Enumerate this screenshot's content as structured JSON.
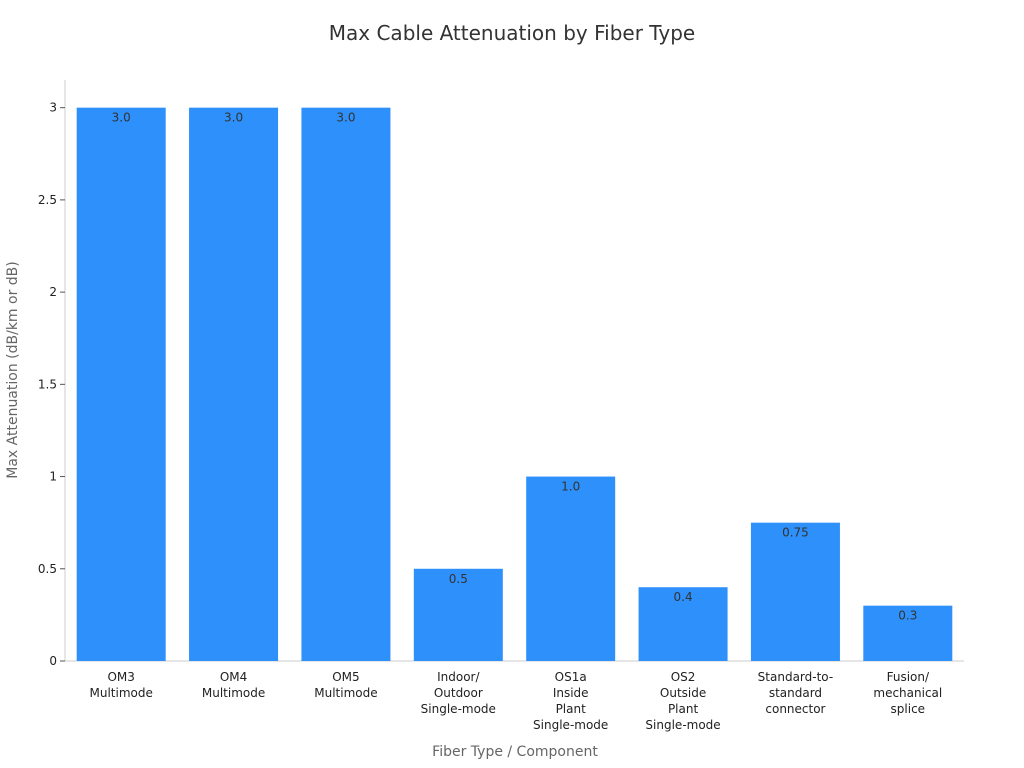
{
  "chart_data": {
    "type": "bar",
    "title": "Max Cable Attenuation by Fiber Type",
    "xlabel": "Fiber Type / Component",
    "ylabel": "Max Attenuation (dB/km or dB)",
    "categories": [
      [
        "OM3",
        "Multimode"
      ],
      [
        "OM4",
        "Multimode"
      ],
      [
        "OM5",
        "Multimode"
      ],
      [
        "Indoor/",
        "Outdoor",
        "Single-mode"
      ],
      [
        "OS1a",
        "Inside",
        "Plant",
        "Single-mode"
      ],
      [
        "OS2",
        "Outside",
        "Plant",
        "Single-mode"
      ],
      [
        "Standard-to-",
        "standard",
        "connector"
      ],
      [
        "Fusion/",
        "mechanical",
        "splice"
      ]
    ],
    "values": [
      3.0,
      3.0,
      3.0,
      0.5,
      1.0,
      0.4,
      0.75,
      0.3
    ],
    "data_labels": [
      "3.0",
      "3.0",
      "3.0",
      "0.5",
      "1.0",
      "0.4",
      "0.75",
      "0.3"
    ],
    "yticks": [
      0,
      0.5,
      1,
      1.5,
      2,
      2.5,
      3
    ],
    "ytick_labels": [
      "0",
      "0.5",
      "1",
      "1.5",
      "2",
      "2.5",
      "3"
    ],
    "ylim": [
      0,
      3.15
    ],
    "grid": false,
    "legend": "none",
    "bar_color": "#2e90fa"
  }
}
